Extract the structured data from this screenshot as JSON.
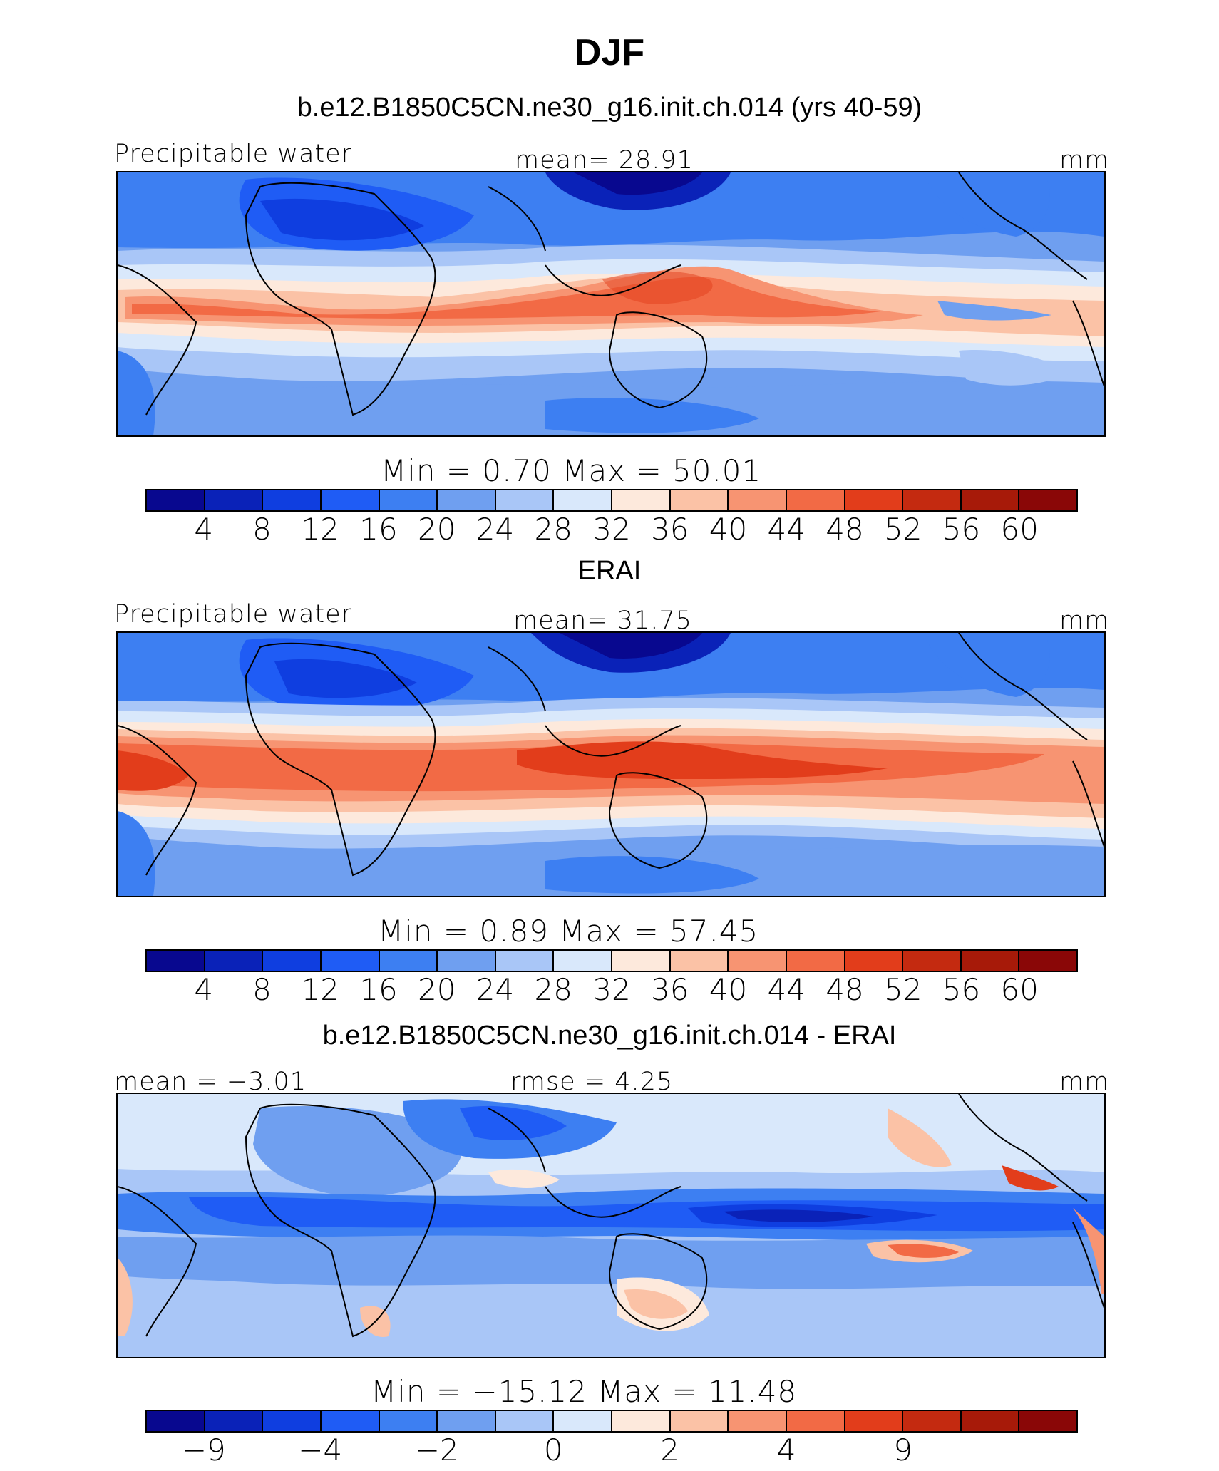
{
  "title": "DJF",
  "palette": [
    "#08088f",
    "#0a22b8",
    "#0f3ee0",
    "#1f5cf5",
    "#3d7ff2",
    "#6f9ff0",
    "#a9c6f7",
    "#d9e8fb",
    "#fde9dc",
    "#fbc2a6",
    "#f79472",
    "#f26a45",
    "#e23d1b",
    "#c42a10",
    "#a71a09",
    "#8a0707"
  ],
  "panels": [
    {
      "title": "b.e12.B1850C5CN.ne30_g16.init.ch.014 (yrs 40-59)",
      "left_label": "Precipitable water",
      "center_label": "mean=   28.91",
      "units": "mm",
      "minmax": "Min  =     0.70  Max  =    50.01",
      "ticks": [
        "4",
        "8",
        "12",
        "16",
        "20",
        "24",
        "28",
        "32",
        "36",
        "40",
        "44",
        "48",
        "52",
        "56",
        "60"
      ]
    },
    {
      "title": "ERAI",
      "left_label": "Precipitable water",
      "center_label": "mean=   31.75",
      "units": "mm",
      "minmax": "Min  =     0.89  Max  =    57.45",
      "ticks": [
        "4",
        "8",
        "12",
        "16",
        "20",
        "24",
        "28",
        "32",
        "36",
        "40",
        "44",
        "48",
        "52",
        "56",
        "60"
      ]
    },
    {
      "title": "b.e12.B1850C5CN.ne30_g16.init.ch.014 - ERAI",
      "left_label": "mean  =   −3.01",
      "center_label": "rmse  =     4.25",
      "units": "mm",
      "minmax": "Min  =  −15.12  Max  =    11.48",
      "ticks": [
        "−9",
        "",
        "−4",
        "",
        "−2",
        "",
        "0",
        "",
        "2",
        "",
        "4",
        "",
        "9",
        "",
        ""
      ]
    }
  ]
}
